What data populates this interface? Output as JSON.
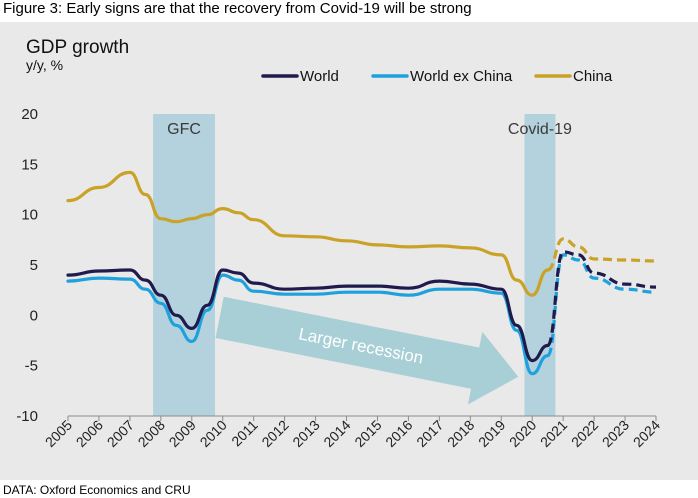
{
  "figure_title": "Figure 3: Early signs are that the recovery from Covid-19 will be strong",
  "source": "DATA: Oxford Economics and CRU",
  "colors": {
    "background": "#e9e9e9",
    "world": "#1f1b4d",
    "world_ex_china": "#1ea1dc",
    "china": "#c9a227",
    "shade": "#b3d2dd",
    "arrow": "#a9cfd6"
  },
  "chart_data": {
    "type": "line",
    "title": "GDP growth",
    "subtitle": "y/y, %",
    "xlabel": "",
    "ylabel": "",
    "ylim": [
      -10,
      20
    ],
    "yticks": [
      -10,
      -5,
      0,
      5,
      10,
      15,
      20
    ],
    "xlim": [
      2005,
      2024
    ],
    "xticks": [
      "2005",
      "2006",
      "2007",
      "2008",
      "2009",
      "2010",
      "2011",
      "2012",
      "2013",
      "2014",
      "2015",
      "2016",
      "2017",
      "2018",
      "2019",
      "2020",
      "2021",
      "2022",
      "2023",
      "2024"
    ],
    "grid": false,
    "legend_position": "top-right",
    "forecast_from": 2020.5,
    "series": [
      {
        "name": "World",
        "color_key": "world",
        "x": [
          2005,
          2006,
          2007,
          2007.5,
          2008,
          2008.5,
          2009,
          2009.5,
          2010,
          2010.5,
          2011,
          2012,
          2013,
          2014,
          2015,
          2016,
          2017,
          2018,
          2019,
          2019.5,
          2020,
          2020.5,
          2021,
          2021.5,
          2022,
          2023,
          2024
        ],
        "y": [
          4.0,
          4.4,
          4.5,
          3.5,
          2.0,
          0.0,
          -1.3,
          1.0,
          4.5,
          4.2,
          3.2,
          2.6,
          2.7,
          2.9,
          2.9,
          2.7,
          3.4,
          3.1,
          2.6,
          -1.0,
          -4.5,
          -3.0,
          6.3,
          6.0,
          4.2,
          3.1,
          2.8
        ]
      },
      {
        "name": "World ex China",
        "color_key": "world_ex_china",
        "x": [
          2005,
          2006,
          2007,
          2007.5,
          2008,
          2008.5,
          2009,
          2009.5,
          2010,
          2010.5,
          2011,
          2012,
          2013,
          2014,
          2015,
          2016,
          2017,
          2018,
          2019,
          2019.5,
          2020,
          2020.5,
          2021,
          2021.5,
          2022,
          2023,
          2024
        ],
        "y": [
          3.4,
          3.7,
          3.6,
          2.6,
          1.2,
          -1.0,
          -2.6,
          0.5,
          4.0,
          3.5,
          2.4,
          2.1,
          2.1,
          2.3,
          2.3,
          2.0,
          2.6,
          2.6,
          2.2,
          -1.5,
          -5.8,
          -4.0,
          6.0,
          5.5,
          3.7,
          2.6,
          2.3
        ]
      },
      {
        "name": "China",
        "color_key": "china",
        "x": [
          2005,
          2006,
          2007,
          2007.5,
          2008,
          2008.5,
          2009,
          2009.5,
          2010,
          2010.5,
          2011,
          2012,
          2013,
          2014,
          2015,
          2016,
          2017,
          2018,
          2019,
          2019.5,
          2020,
          2020.5,
          2021,
          2021.5,
          2022,
          2023,
          2024
        ],
        "y": [
          11.4,
          12.7,
          14.2,
          12.0,
          9.6,
          9.3,
          9.6,
          10.0,
          10.6,
          10.2,
          9.5,
          7.9,
          7.8,
          7.4,
          7.0,
          6.8,
          6.9,
          6.7,
          6.0,
          3.5,
          2.0,
          4.5,
          7.6,
          6.8,
          5.6,
          5.5,
          5.4
        ]
      }
    ],
    "shaded_regions": [
      {
        "label": "GFC",
        "x_start": 2007.75,
        "x_end": 2009.75
      },
      {
        "label": "Covid-19",
        "x_start": 2019.75,
        "x_end": 2020.75
      }
    ],
    "annotations": [
      {
        "text": "Larger recession"
      }
    ]
  }
}
